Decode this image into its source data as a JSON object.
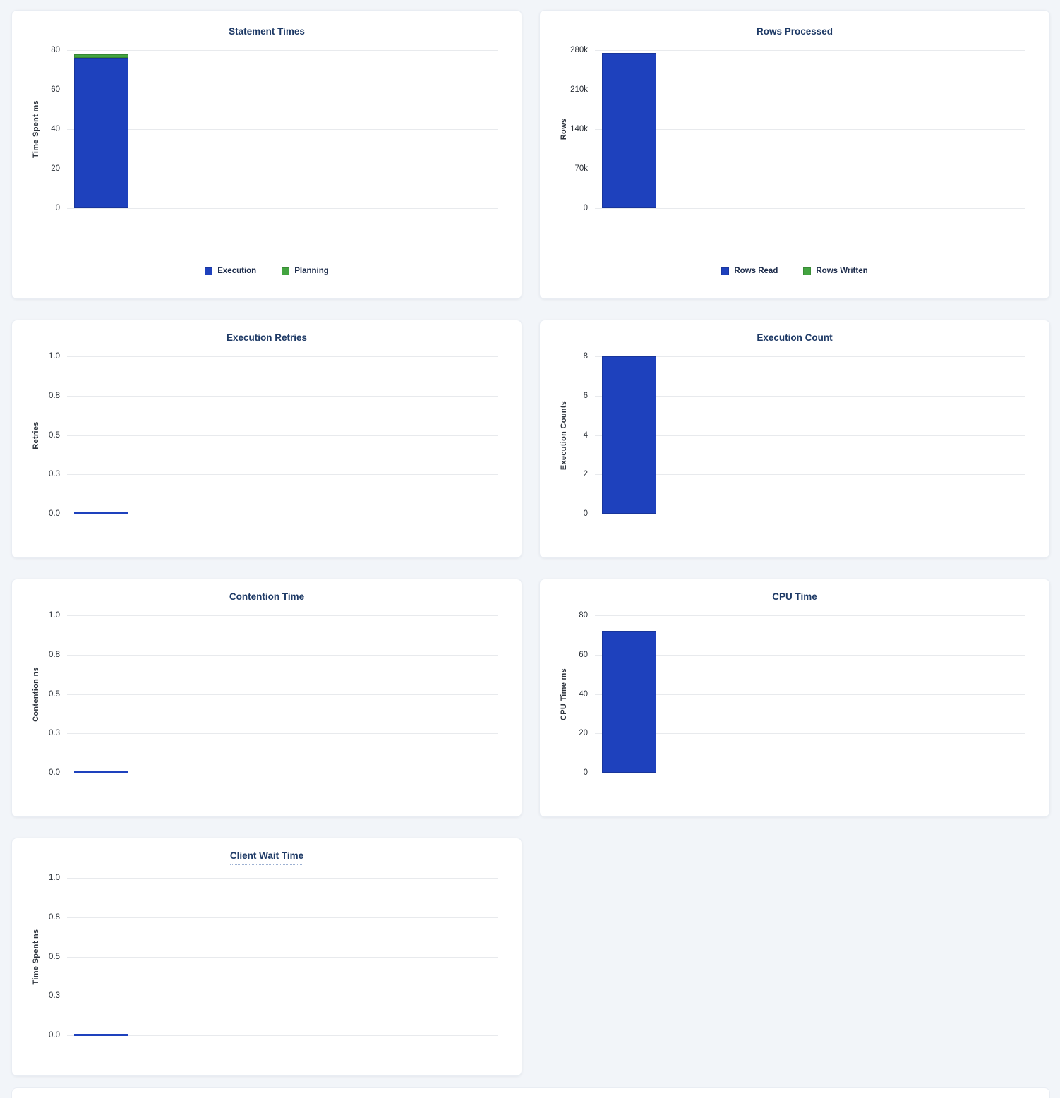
{
  "colors": {
    "page_bg": "#f2f5f9",
    "card_bg": "#ffffff",
    "title": "#1e3a66",
    "tick": "#2b3037",
    "grid": "#e8eaed",
    "bar_blue": "#1e41bd",
    "bar_green": "#43a440",
    "legend_text": "#1c2b4a"
  },
  "chart_data": [
    {
      "type": "bar",
      "title": "Statement Times",
      "ylabel": "Time Spent ms",
      "ylim": [
        0,
        80
      ],
      "yticks": [
        "80",
        "60",
        "40",
        "20",
        "0"
      ],
      "grid": true,
      "stacked": true,
      "series": [
        {
          "name": "Execution",
          "color_key": "bar_blue",
          "value": 76.2
        },
        {
          "name": "Planning",
          "color_key": "bar_green",
          "value": 1.5
        }
      ],
      "legend": [
        {
          "label": "Execution",
          "color_key": "bar_blue"
        },
        {
          "label": "Planning",
          "color_key": "bar_green"
        }
      ],
      "legend_position": "bottom"
    },
    {
      "type": "bar",
      "title": "Rows Processed",
      "ylabel": "Rows",
      "ylim": [
        0,
        280000
      ],
      "yticks": [
        "280k",
        "210k",
        "140k",
        "70k",
        "0"
      ],
      "grid": true,
      "stacked": true,
      "series": [
        {
          "name": "Rows Read",
          "color_key": "bar_blue",
          "value": 274500
        },
        {
          "name": "Rows Written",
          "color_key": "bar_green",
          "value": 0
        }
      ],
      "legend": [
        {
          "label": "Rows Read",
          "color_key": "bar_blue"
        },
        {
          "label": "Rows Written",
          "color_key": "bar_green"
        }
      ],
      "legend_position": "bottom"
    },
    {
      "type": "bar",
      "title": "Execution Retries",
      "ylabel": "Retries",
      "ylim": [
        0,
        1
      ],
      "yticks": [
        "1.0",
        "0.8",
        "0.5",
        "0.3",
        "0.0"
      ],
      "grid": true,
      "series": [
        {
          "name": "Retries",
          "color_key": "bar_blue",
          "value": 0
        }
      ],
      "zero_line": true
    },
    {
      "type": "bar",
      "title": "Execution Count",
      "ylabel": "Execution Counts",
      "ylim": [
        0,
        8
      ],
      "yticks": [
        "8",
        "6",
        "4",
        "2",
        "0"
      ],
      "grid": true,
      "series": [
        {
          "name": "Execution Count",
          "color_key": "bar_blue",
          "value": 8
        }
      ]
    },
    {
      "type": "bar",
      "title": "Contention Time",
      "ylabel": "Contention ns",
      "ylim": [
        0,
        1
      ],
      "yticks": [
        "1.0",
        "0.8",
        "0.5",
        "0.3",
        "0.0"
      ],
      "grid": true,
      "series": [
        {
          "name": "Contention",
          "color_key": "bar_blue",
          "value": 0
        }
      ],
      "zero_line": true
    },
    {
      "type": "bar",
      "title": "CPU Time",
      "ylabel": "CPU Time ms",
      "ylim": [
        0,
        80
      ],
      "yticks": [
        "80",
        "60",
        "40",
        "20",
        "0"
      ],
      "grid": true,
      "series": [
        {
          "name": "CPU Time",
          "color_key": "bar_blue",
          "value": 72
        }
      ]
    },
    {
      "type": "bar",
      "title": "Client Wait Time",
      "ylabel": "Time Spent ns",
      "ylim": [
        0,
        1
      ],
      "yticks": [
        "1.0",
        "0.8",
        "0.5",
        "0.3",
        "0.0"
      ],
      "grid": true,
      "series": [
        {
          "name": "Client Wait",
          "color_key": "bar_blue",
          "value": 0
        }
      ],
      "zero_line": true,
      "title_underlined": true
    }
  ]
}
